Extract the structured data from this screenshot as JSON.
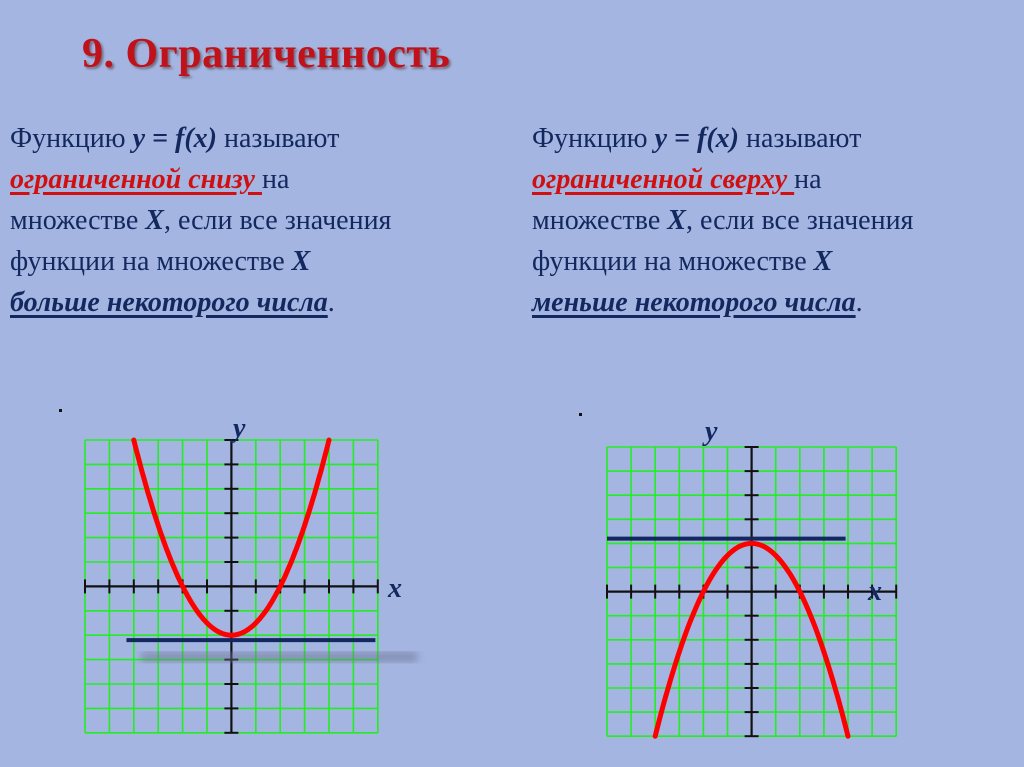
{
  "title": "9. Ограниченность",
  "left": {
    "intro": "Функцию ",
    "formula": "y = f(x)",
    "verb": " называют",
    "term": "ограниченной снизу ",
    "after_term": "на",
    "line3_a": "множестве ",
    "set": "X",
    "line3_b": ", если все значения",
    "line4": "функции на множестве ",
    "condition": "больше некоторого числа",
    "period": "."
  },
  "right": {
    "intro": "Функцию ",
    "formula": "y = f(x)",
    "verb": " называют",
    "term": "ограниченной сверху ",
    "after_term": "на",
    "line3_a": "множестве ",
    "set": "X",
    "line3_b": ", если все значения",
    "line4": "функции на множестве ",
    "condition": "меньше некоторого числа",
    "period": "."
  },
  "graphs": [
    {
      "name": "bounded-below",
      "x_label": "x",
      "y_label": "y",
      "curve": {
        "a": 0.5,
        "c": -2
      },
      "bound": -2.2,
      "curve_color": "#ff0000",
      "bound_color": "#13285e",
      "grid_color": "#22ee22"
    },
    {
      "name": "bounded-above",
      "x_label": "x",
      "y_label": "y",
      "curve": {
        "a": -0.5,
        "c": 2
      },
      "bound": 2.2,
      "curve_color": "#ff0000",
      "bound_color": "#13285e",
      "grid_color": "#22ee22"
    }
  ]
}
